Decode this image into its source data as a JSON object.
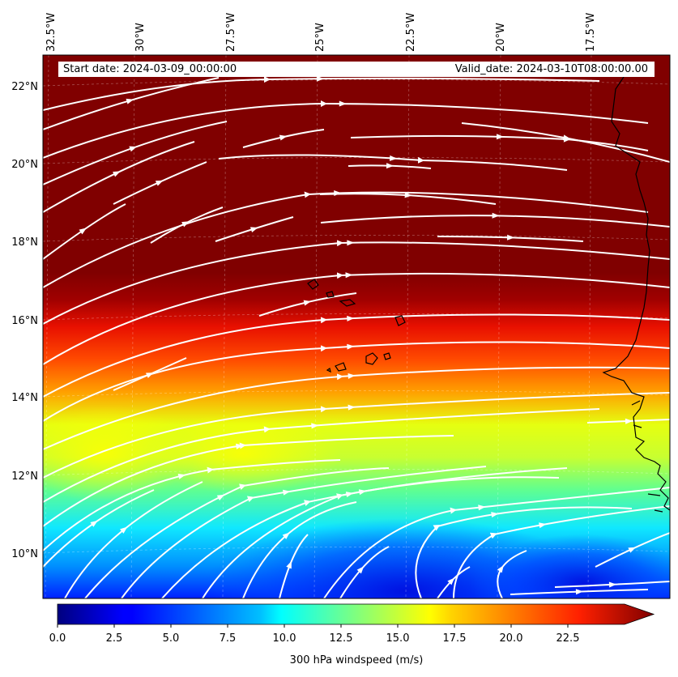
{
  "header": {
    "start_date": "Start date: 2024-03-09_00:00:00",
    "valid_date": "Valid_date: 2024-03-10T08:00:00.00"
  },
  "longitude_labels": [
    "32.5°W",
    "30°W",
    "27.5°W",
    "25°W",
    "22.5°W",
    "20°W",
    "17.5°W"
  ],
  "latitude_labels": [
    "22°N",
    "20°N",
    "18°N",
    "16°N",
    "14°N",
    "12°N",
    "10°N"
  ],
  "colorbar": {
    "label": "300 hPa windspeed (m/s)",
    "ticks": [
      "0.0",
      "2.5",
      "5.0",
      "7.5",
      "10.0",
      "12.5",
      "15.0",
      "17.5",
      "20.0",
      "22.5"
    ],
    "min": 0,
    "max": 25,
    "extend": "max"
  },
  "map": {
    "field": "300 hPa windspeed",
    "units": "m/s",
    "lon_range": [
      -32.7,
      -15.3
    ],
    "lat_range": [
      8.9,
      22.8
    ],
    "colormap": "jet",
    "overlay": "streamlines",
    "coastline_color": "#000000",
    "streamline_color": "#ffffff"
  }
}
